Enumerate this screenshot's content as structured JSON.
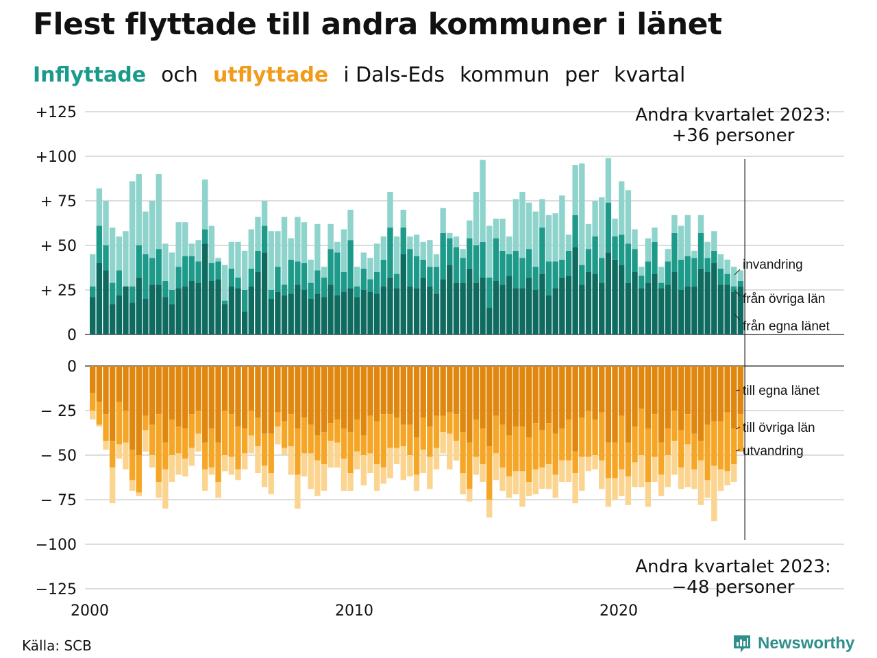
{
  "title": "Flest flyttade till andra kommuner i länet",
  "subtitle": {
    "part1": "Inflyttade",
    "part2": "och",
    "part3": "utflyttade",
    "part4": "i Dals-Eds",
    "part5": "kommun",
    "part6": "per",
    "part7": "kvartal"
  },
  "source": "Källa: SCB",
  "brand": "Newsworthy",
  "colors": {
    "in_own": "#0f6a5f",
    "in_other": "#1e9a8a",
    "in_immigration": "#8fd4cc",
    "out_own": "#e0870f",
    "out_other": "#f6a627",
    "out_emigration": "#fbd48f",
    "grid": "#dddddd",
    "brand": "#2f8f8a"
  },
  "chart_data": {
    "type": "bar",
    "stacked": true,
    "x_start": "2000 Q1",
    "x_end": "2023 Q2",
    "xticks": [
      "2000",
      "2010",
      "2020"
    ],
    "panels": [
      {
        "name": "inflyttade",
        "ylim": [
          0,
          125
        ],
        "yticks": [
          "0",
          "+ 25",
          "+ 50",
          "+ 75",
          "+100",
          "+125"
        ],
        "series": [
          {
            "name": "från egna länet",
            "values": [
              21,
              40,
              36,
              17,
              22,
              27,
              18,
              32,
              20,
              28,
              28,
              21,
              17,
              26,
              27,
              30,
              29,
              51,
              30,
              31,
              17,
              27,
              26,
              13,
              27,
              35,
              46,
              20,
              24,
              22,
              23,
              28,
              25,
              20,
              23,
              21,
              28,
              22,
              24,
              26,
              21,
              25,
              24,
              23,
              27,
              32,
              26,
              45,
              27,
              26,
              32,
              27,
              23,
              31,
              39,
              29,
              29,
              37,
              29,
              32,
              15,
              30,
              28,
              33,
              26,
              26,
              32,
              25,
              34,
              22,
              26,
              32,
              33,
              49,
              28,
              35,
              34,
              29,
              46,
              42,
              39,
              29,
              35,
              26,
              29,
              34,
              26,
              28,
              35,
              25,
              27,
              27,
              37,
              35,
              40,
              28,
              28,
              24,
              27
            ]
          },
          {
            "name": "från övriga län",
            "values": [
              6,
              21,
              14,
              12,
              14,
              0,
              9,
              18,
              25,
              15,
              20,
              9,
              8,
              12,
              17,
              14,
              12,
              8,
              10,
              10,
              2,
              10,
              6,
              12,
              10,
              12,
              15,
              5,
              14,
              6,
              19,
              13,
              15,
              9,
              13,
              11,
              20,
              24,
              11,
              27,
              6,
              12,
              7,
              12,
              15,
              28,
              8,
              15,
              21,
              18,
              10,
              11,
              15,
              26,
              15,
              20,
              14,
              17,
              21,
              20,
              17,
              24,
              19,
              12,
              21,
              17,
              16,
              13,
              26,
              19,
              15,
              10,
              14,
              18,
              11,
              13,
              21,
              14,
              28,
              13,
              17,
              22,
              13,
              7,
              12,
              18,
              3,
              13,
              22,
              17,
              17,
              16,
              20,
              8,
              7,
              9,
              6,
              3,
              3
            ]
          },
          {
            "name": "invandring",
            "values": [
              18,
              21,
              25,
              31,
              19,
              31,
              59,
              40,
              24,
              32,
              42,
              21,
              21,
              25,
              19,
              7,
              12,
              28,
              21,
              2,
              20,
              15,
              20,
              22,
              22,
              19,
              14,
              33,
              20,
              38,
              12,
              25,
              23,
              13,
              26,
              6,
              14,
              6,
              24,
              17,
              11,
              9,
              12,
              16,
              13,
              20,
              21,
              10,
              7,
              12,
              10,
              15,
              7,
              14,
              3,
              6,
              5,
              10,
              30,
              46,
              29,
              11,
              18,
              10,
              29,
              37,
              26,
              31,
              16,
              26,
              27,
              36,
              9,
              28,
              57,
              14,
              20,
              34,
              25,
              10,
              30,
              30,
              11,
              5,
              13,
              8,
              9,
              7,
              10,
              19,
              23,
              4,
              10,
              9,
              11,
              8,
              8,
              11,
              6
            ]
          }
        ]
      },
      {
        "name": "utflyttade",
        "ylim": [
          -125,
          0
        ],
        "yticks": [
          "0",
          "− 25",
          "− 50",
          "− 75",
          "−100",
          "−125"
        ],
        "series": [
          {
            "name": "till egna länet",
            "values": [
              -15,
              -20,
              -27,
              -42,
              -20,
              -25,
              -47,
              -50,
              -28,
              -33,
              -27,
              -43,
              -30,
              -34,
              -35,
              -27,
              -25,
              -43,
              -35,
              -43,
              -25,
              -27,
              -34,
              -35,
              -25,
              -29,
              -38,
              -38,
              -26,
              -31,
              -27,
              -35,
              -29,
              -33,
              -39,
              -37,
              -32,
              -30,
              -35,
              -37,
              -30,
              -39,
              -28,
              -31,
              -27,
              -27,
              -29,
              -33,
              -33,
              -40,
              -29,
              -34,
              -28,
              -28,
              -26,
              -27,
              -37,
              -43,
              -30,
              -35,
              -45,
              -28,
              -33,
              -39,
              -34,
              -34,
              -40,
              -32,
              -36,
              -32,
              -38,
              -35,
              -30,
              -48,
              -29,
              -25,
              -30,
              -26,
              -43,
              -43,
              -28,
              -43,
              -34,
              -24,
              -35,
              -27,
              -43,
              -35,
              -25,
              -36,
              -27,
              -38,
              -42,
              -33,
              -31,
              -31,
              -26,
              -35,
              -27
            ]
          },
          {
            "name": "till övriga län",
            "values": [
              -10,
              -13,
              -15,
              -15,
              -24,
              -18,
              -17,
              -21,
              -8,
              -17,
              -38,
              -15,
              -20,
              -15,
              -17,
              -19,
              -13,
              -15,
              -22,
              -22,
              -25,
              -24,
              -24,
              -14,
              -14,
              -16,
              -18,
              -22,
              -8,
              -15,
              -18,
              -26,
              -20,
              -16,
              -14,
              -18,
              -10,
              -13,
              -17,
              -23,
              -18,
              -11,
              -21,
              -24,
              -30,
              -19,
              -17,
              -12,
              -17,
              -21,
              -18,
              -17,
              -18,
              -9,
              -12,
              -15,
              -23,
              -26,
              -21,
              -20,
              -30,
              -21,
              -24,
              -23,
              -25,
              -25,
              -25,
              -26,
              -21,
              -23,
              -23,
              -18,
              -23,
              -12,
              -22,
              -26,
              -20,
              -27,
              -20,
              -20,
              -30,
              -19,
              -20,
              -26,
              -30,
              -24,
              -18,
              -15,
              -17,
              -21,
              -17,
              -20,
              -11,
              -31,
              -25,
              -27,
              -33,
              -20,
              -21
            ]
          },
          {
            "name": "utvandring",
            "values": [
              -5,
              -1,
              -5,
              -20,
              -8,
              -15,
              -6,
              -2,
              -12,
              -7,
              -9,
              -22,
              -15,
              -12,
              -10,
              -10,
              -10,
              -12,
              -4,
              -9,
              -9,
              -10,
              -6,
              -9,
              -10,
              -15,
              -12,
              -12,
              -10,
              -4,
              -16,
              -19,
              -13,
              -20,
              -20,
              -15,
              -15,
              -14,
              -18,
              -10,
              -10,
              -17,
              -11,
              -15,
              -9,
              -17,
              -9,
              -19,
              -12,
              -9,
              -13,
              -18,
              -12,
              -12,
              -20,
              -11,
              -12,
              -7,
              -10,
              -10,
              -10,
              -15,
              -13,
              -12,
              -13,
              -20,
              -8,
              -14,
              -12,
              -14,
              -13,
              -12,
              -12,
              -17,
              -19,
              -8,
              -8,
              -16,
              -16,
              -12,
              -15,
              -16,
              -14,
              -18,
              -14,
              -14,
              -12,
              -18,
              -19,
              -12,
              -24,
              -11,
              -25,
              -10,
              -31,
              -12,
              -8,
              -10,
              0
            ]
          }
        ]
      }
    ],
    "annotations": {
      "top_line1": "Andra kvartalet 2023:",
      "top_line2": "+36 personer",
      "bottom_line1": "Andra kvartalet 2023:",
      "bottom_line2": "−48 personer"
    }
  }
}
